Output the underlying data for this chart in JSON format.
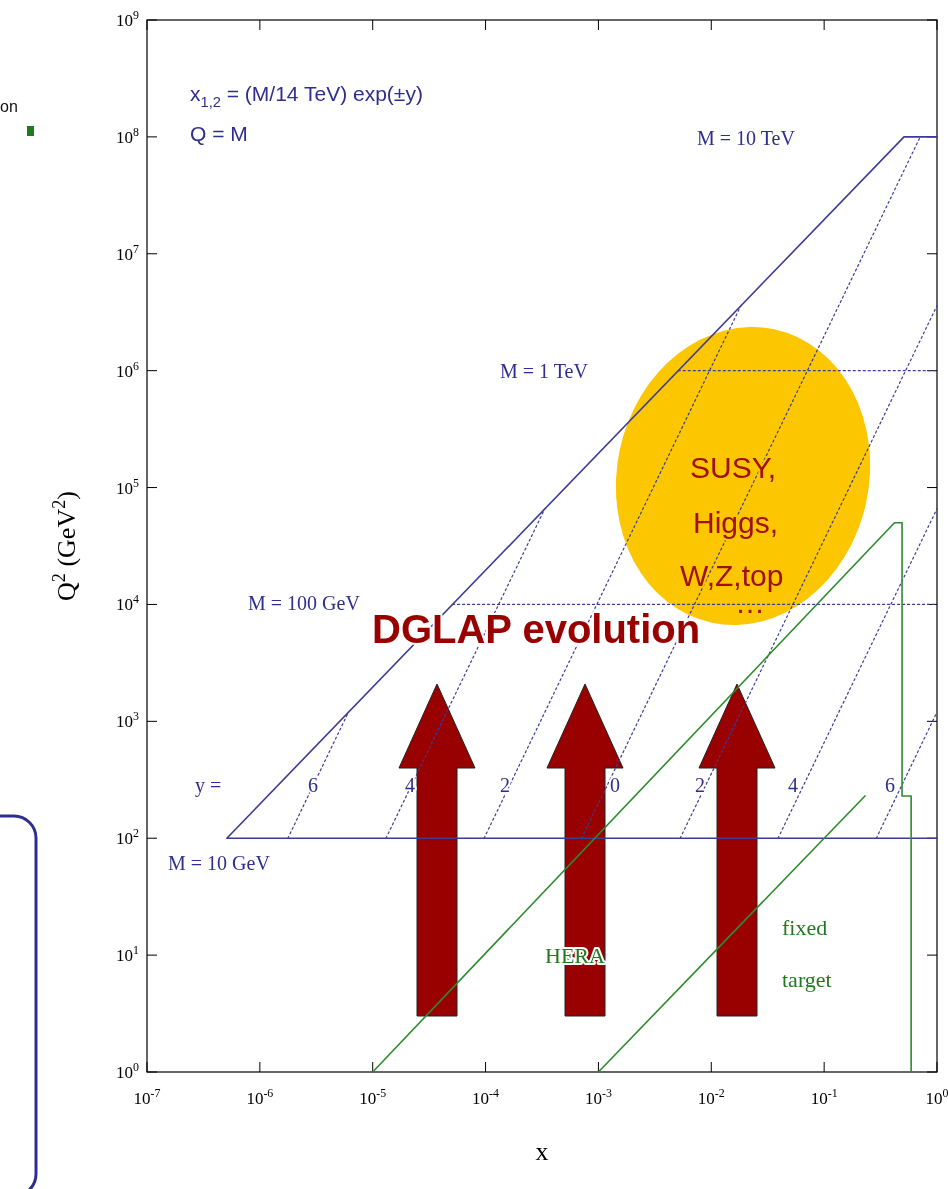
{
  "chart_data": {
    "type": "line",
    "xlabel": "x",
    "ylabel": "Q$^{2}$  (GeV$^{2}$)",
    "log": "xy",
    "grid": false,
    "xlim": [
      1e-07,
      1
    ],
    "ylim": [
      1,
      1000000000.0
    ],
    "xticks": [
      {
        "value": 1e-07,
        "label": "10$^{-7}$"
      },
      {
        "value": 1e-06,
        "label": "10$^{-6}$"
      },
      {
        "value": 1e-05,
        "label": "10$^{-5}$"
      },
      {
        "value": 0.0001,
        "label": "10$^{-4}$"
      },
      {
        "value": 0.001,
        "label": "10$^{-3}$"
      },
      {
        "value": 0.01,
        "label": "10$^{-2}$"
      },
      {
        "value": 0.1,
        "label": "10$^{-1}$"
      },
      {
        "value": 1,
        "label": "10$^{0}$"
      }
    ],
    "yticks": [
      {
        "value": 1,
        "label": "10$^{0}$"
      },
      {
        "value": 10,
        "label": "10$^{1}$"
      },
      {
        "value": 100,
        "label": "10$^{2}$"
      },
      {
        "value": 1000,
        "label": "10$^{3}$"
      },
      {
        "value": 10000,
        "label": "10$^{4}$"
      },
      {
        "value": 100000,
        "label": "10$^{5}$"
      },
      {
        "value": 1000000,
        "label": "10$^{6}$"
      },
      {
        "value": 10000000,
        "label": "10$^{7}$"
      },
      {
        "value": 100000000,
        "label": "10$^{8}$"
      },
      {
        "value": 1000000000,
        "label": "10$^{9}$"
      }
    ],
    "series": [
      {
        "color": "#3c3c96",
        "line_style": "solid",
        "x": [
          1,
          5.1e-07,
          0.51,
          1
        ],
        "values": [
          100,
          100,
          100000000.0,
          100000000.0
        ]
      },
      {
        "color": "#3c3c96",
        "line_style": "dotted",
        "x": [
          5.1e-05,
          1
        ],
        "values": [
          10000,
          10000
        ]
      },
      {
        "color": "#3c3c96",
        "line_style": "dotted",
        "x": [
          0.0051,
          1
        ],
        "values": [
          1000000,
          1000000
        ]
      },
      {
        "color": "#3c3c96",
        "line_style": "dotted",
        "x": [
          1.77e-06,
          6.1e-06
        ],
        "values": [
          100,
          1200
        ]
      },
      {
        "color": "#3c3c96",
        "line_style": "dotted",
        "x": [
          1.31e-05,
          0.000335
        ],
        "values": [
          100,
          66000
        ]
      },
      {
        "color": "#3c3c96",
        "line_style": "dotted",
        "x": [
          9.7e-05,
          0.0183
        ],
        "values": [
          100,
          3600000
        ]
      },
      {
        "color": "#3c3c96",
        "line_style": "dotted",
        "x": [
          0.00071,
          0.71
        ],
        "values": [
          100,
          100000000.0
        ]
      },
      {
        "color": "#3c3c96",
        "line_style": "dotted",
        "x": [
          0.0053,
          1
        ],
        "values": [
          100,
          3600000
        ]
      },
      {
        "color": "#3c3c96",
        "line_style": "dotted",
        "x": [
          0.039,
          1
        ],
        "values": [
          100,
          66000
        ]
      },
      {
        "color": "#3c3c96",
        "line_style": "dotted",
        "x": [
          0.29,
          1
        ],
        "values": [
          100,
          1200
        ]
      },
      {
        "color": "#2e8b2e",
        "line_style": "solid",
        "x": [
          1e-05,
          0.42,
          0.49,
          0.49,
          0.59,
          0.59
        ],
        "values": [
          1,
          50000,
          50000,
          230,
          230,
          1
        ]
      },
      {
        "color": "#2e8b2e",
        "line_style": "solid",
        "x": [
          0.001,
          0.23
        ],
        "values": [
          1,
          230
        ]
      }
    ],
    "annotations": [
      "x$_{1,2}$ = (M/14 TeV) exp(±y)",
      "Q = M",
      "M = 10 TeV",
      "M = 1 TeV",
      "M = 100 GeV",
      "M = 10 GeV",
      "y =",
      "6",
      "4",
      "2",
      "0",
      "2",
      "4",
      "6",
      "HERA",
      "fixed",
      "target",
      "SUSY,",
      "Higgs,",
      "W,Z,top",
      "…",
      "DGLAP evolution",
      "on"
    ]
  }
}
